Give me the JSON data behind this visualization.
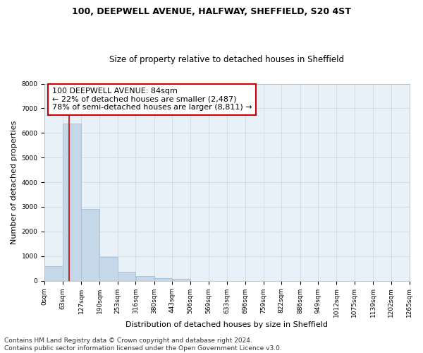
{
  "title_line1": "100, DEEPWELL AVENUE, HALFWAY, SHEFFIELD, S20 4ST",
  "title_line2": "Size of property relative to detached houses in Sheffield",
  "xlabel": "Distribution of detached houses by size in Sheffield",
  "ylabel": "Number of detached properties",
  "bar_color": "#c5d8ea",
  "bar_edge_color": "#a8c4d8",
  "grid_color": "#d0dde8",
  "background_color": "#e8f0f8",
  "vline_value": 84,
  "vline_color": "#cc0000",
  "annotation_line1": "100 DEEPWELL AVENUE: 84sqm",
  "annotation_line2": "← 22% of detached houses are smaller (2,487)",
  "annotation_line3": "78% of semi-detached houses are larger (8,811) →",
  "annotation_box_color": "#cc0000",
  "bin_edges": [
    0,
    63,
    127,
    190,
    253,
    316,
    380,
    443,
    506,
    569,
    633,
    696,
    759,
    822,
    886,
    949,
    1012,
    1075,
    1139,
    1202,
    1265
  ],
  "bin_counts": [
    580,
    6380,
    2920,
    970,
    360,
    175,
    110,
    75,
    0,
    0,
    0,
    0,
    0,
    0,
    0,
    0,
    0,
    0,
    0,
    0
  ],
  "ylim": [
    0,
    8000
  ],
  "yticks": [
    0,
    1000,
    2000,
    3000,
    4000,
    5000,
    6000,
    7000,
    8000
  ],
  "tick_labels": [
    "0sqm",
    "63sqm",
    "127sqm",
    "190sqm",
    "253sqm",
    "316sqm",
    "380sqm",
    "443sqm",
    "506sqm",
    "569sqm",
    "633sqm",
    "696sqm",
    "759sqm",
    "822sqm",
    "886sqm",
    "949sqm",
    "1012sqm",
    "1075sqm",
    "1139sqm",
    "1202sqm",
    "1265sqm"
  ],
  "footer_text": "Contains HM Land Registry data © Crown copyright and database right 2024.\nContains public sector information licensed under the Open Government Licence v3.0.",
  "title_fontsize": 9,
  "subtitle_fontsize": 8.5,
  "axis_label_fontsize": 8,
  "tick_fontsize": 6.5,
  "annotation_fontsize": 8,
  "footer_fontsize": 6.5
}
